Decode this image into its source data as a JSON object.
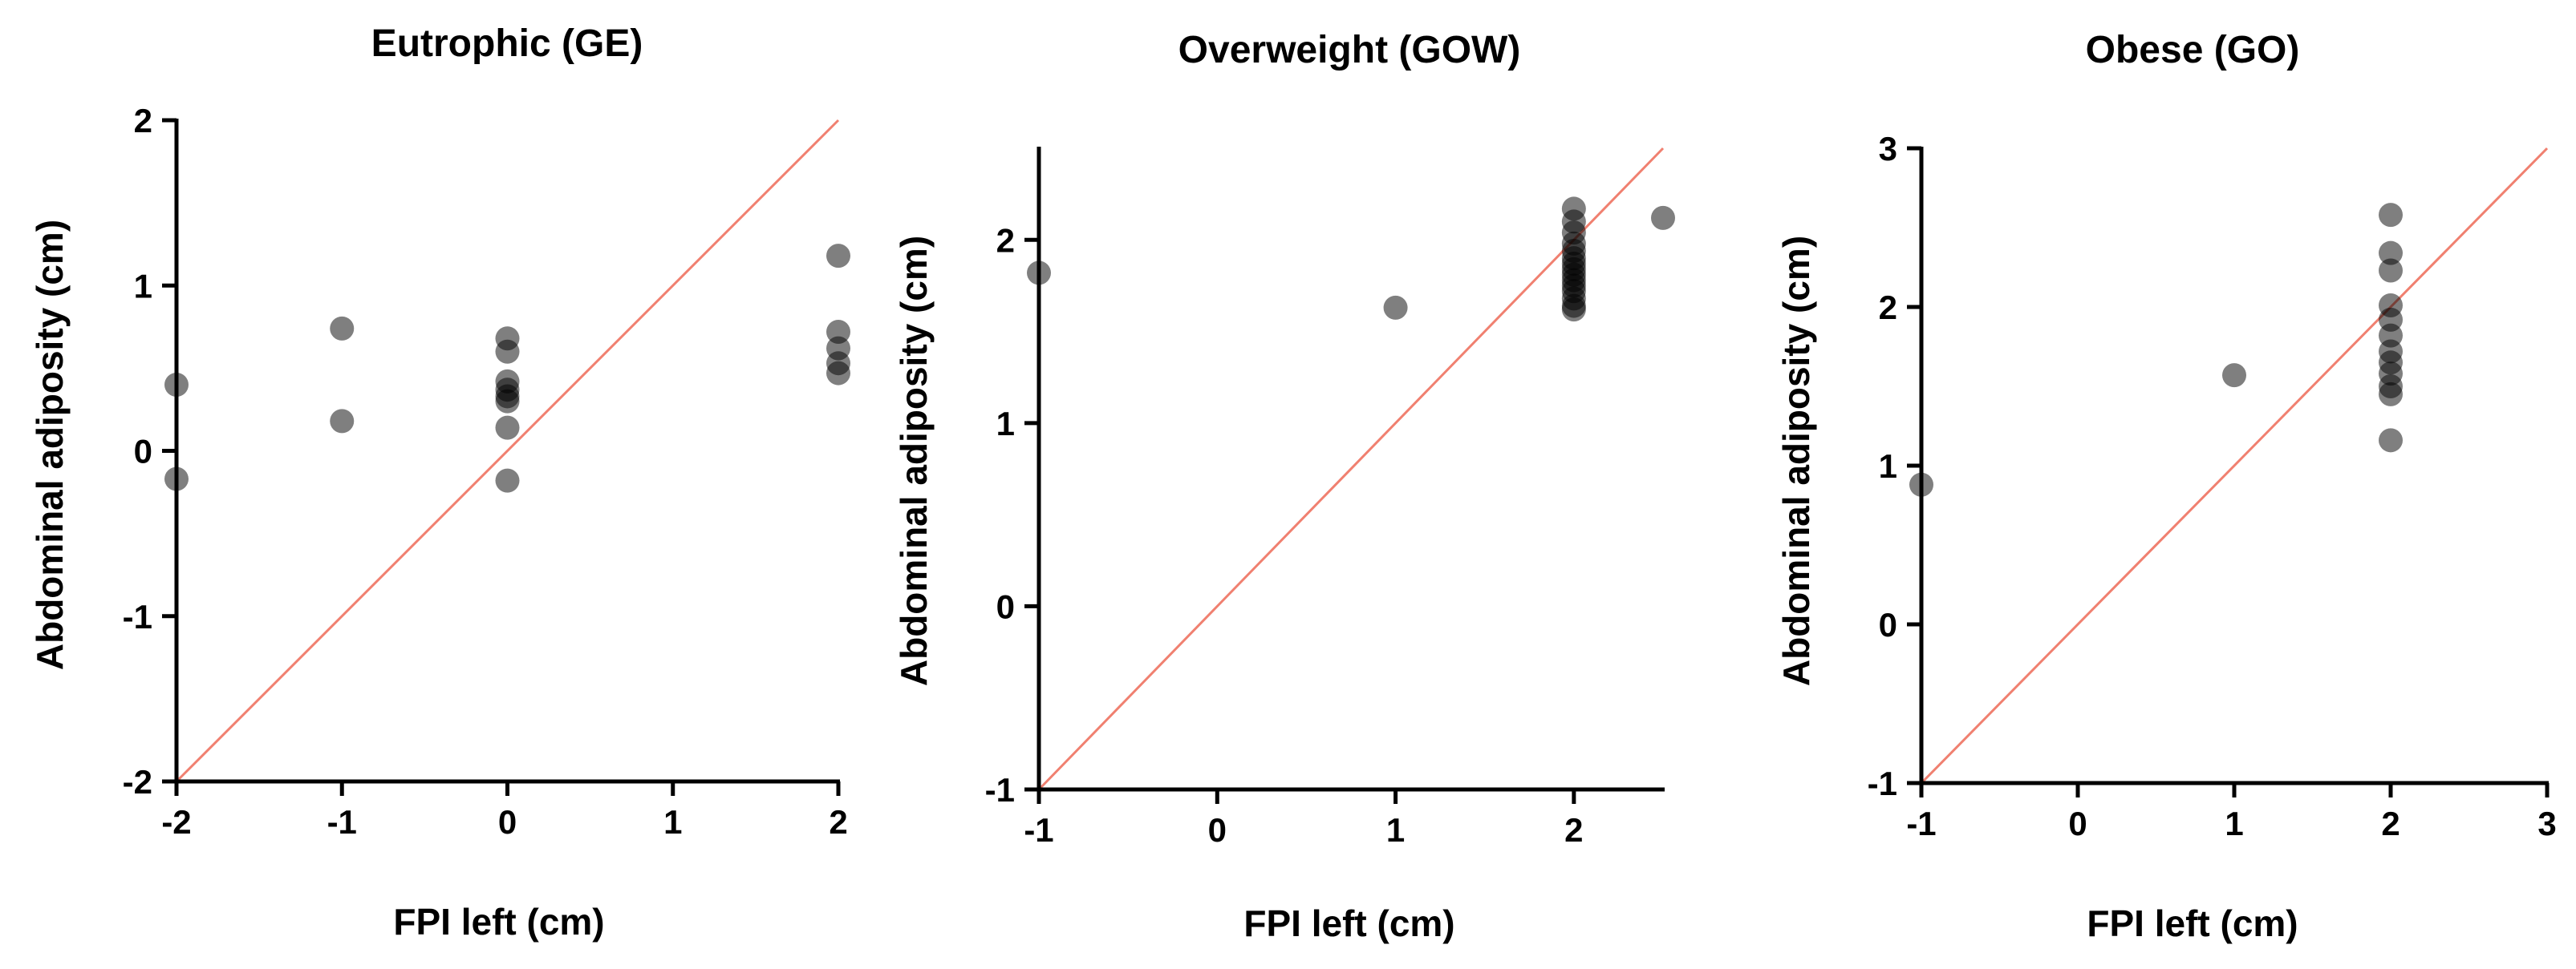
{
  "chart_data": [
    {
      "type": "scatter",
      "title": "Eutrophic (GE)",
      "xlabel": "FPI left (cm)",
      "ylabel": "Abdominal adiposity (cm)",
      "xlim": [
        -2,
        2
      ],
      "ylim": [
        -2,
        2
      ],
      "xticks": [
        -2,
        -1,
        0,
        1,
        2
      ],
      "yticks": [
        -2,
        -1,
        0,
        1,
        2
      ],
      "xtick_labels": [
        "-2",
        "-1",
        "0",
        "1",
        "2"
      ],
      "ytick_labels": [
        "-2",
        "-1",
        "0",
        "1",
        "2"
      ],
      "reference_line": {
        "from": [
          -2,
          -2
        ],
        "to": [
          2,
          2
        ],
        "color": "#f08070"
      },
      "marker_color": "#000000",
      "series": [
        {
          "name": "points",
          "x": [
            -2,
            -2,
            -1,
            -1,
            0,
            0,
            0,
            0,
            0,
            0,
            0,
            0,
            2,
            2,
            2,
            2,
            2
          ],
          "y": [
            0.4,
            -0.17,
            0.74,
            0.18,
            0.68,
            0.6,
            0.42,
            0.37,
            0.33,
            0.3,
            0.14,
            -0.18,
            1.18,
            0.72,
            0.62,
            0.53,
            0.47
          ]
        }
      ]
    },
    {
      "type": "scatter",
      "title": "Overweight (GOW)",
      "xlabel": "FPI left (cm)",
      "ylabel": "Abdominal adiposity (cm)",
      "xlim": [
        -1,
        2.5
      ],
      "ylim": [
        -1,
        2.5
      ],
      "xticks": [
        -1,
        0,
        1,
        2
      ],
      "yticks": [
        -1,
        0,
        1,
        2
      ],
      "xtick_labels": [
        "-1",
        "0",
        "1",
        "2"
      ],
      "ytick_labels": [
        "-1",
        "0",
        "1",
        "2"
      ],
      "reference_line": {
        "from": [
          -1,
          -1
        ],
        "to": [
          2.5,
          2.5
        ],
        "color": "#f08070"
      },
      "marker_color": "#000000",
      "series": [
        {
          "name": "points",
          "x": [
            -1,
            1,
            2,
            2,
            2,
            2,
            2,
            2,
            2,
            2,
            2,
            2,
            2,
            2,
            2,
            2,
            2,
            2.5
          ],
          "y": [
            1.82,
            1.63,
            2.17,
            2.1,
            2.04,
            1.98,
            1.94,
            1.9,
            1.87,
            1.84,
            1.81,
            1.78,
            1.75,
            1.72,
            1.68,
            1.64,
            1.62,
            2.12
          ]
        }
      ]
    },
    {
      "type": "scatter",
      "title": "Obese (GO)",
      "xlabel": "FPI left (cm)",
      "ylabel": "Abdominal adiposity (cm)",
      "xlim": [
        -1,
        3
      ],
      "ylim": [
        -1,
        3
      ],
      "xticks": [
        -1,
        0,
        1,
        2,
        3
      ],
      "yticks": [
        -1,
        0,
        1,
        2,
        3
      ],
      "xtick_labels": [
        "-1",
        "0",
        "1",
        "2",
        "3"
      ],
      "ytick_labels": [
        "-1",
        "0",
        "1",
        "2",
        "3"
      ],
      "reference_line": {
        "from": [
          -1,
          -1
        ],
        "to": [
          3,
          3
        ],
        "color": "#f08070"
      },
      "marker_color": "#000000",
      "series": [
        {
          "name": "points",
          "x": [
            -1,
            1,
            2,
            2,
            2,
            2,
            2,
            2,
            2,
            2,
            2,
            2,
            2,
            2
          ],
          "y": [
            0.88,
            1.57,
            2.58,
            2.34,
            2.23,
            2.01,
            1.92,
            1.82,
            1.72,
            1.65,
            1.58,
            1.5,
            1.45,
            1.16
          ]
        }
      ]
    }
  ]
}
